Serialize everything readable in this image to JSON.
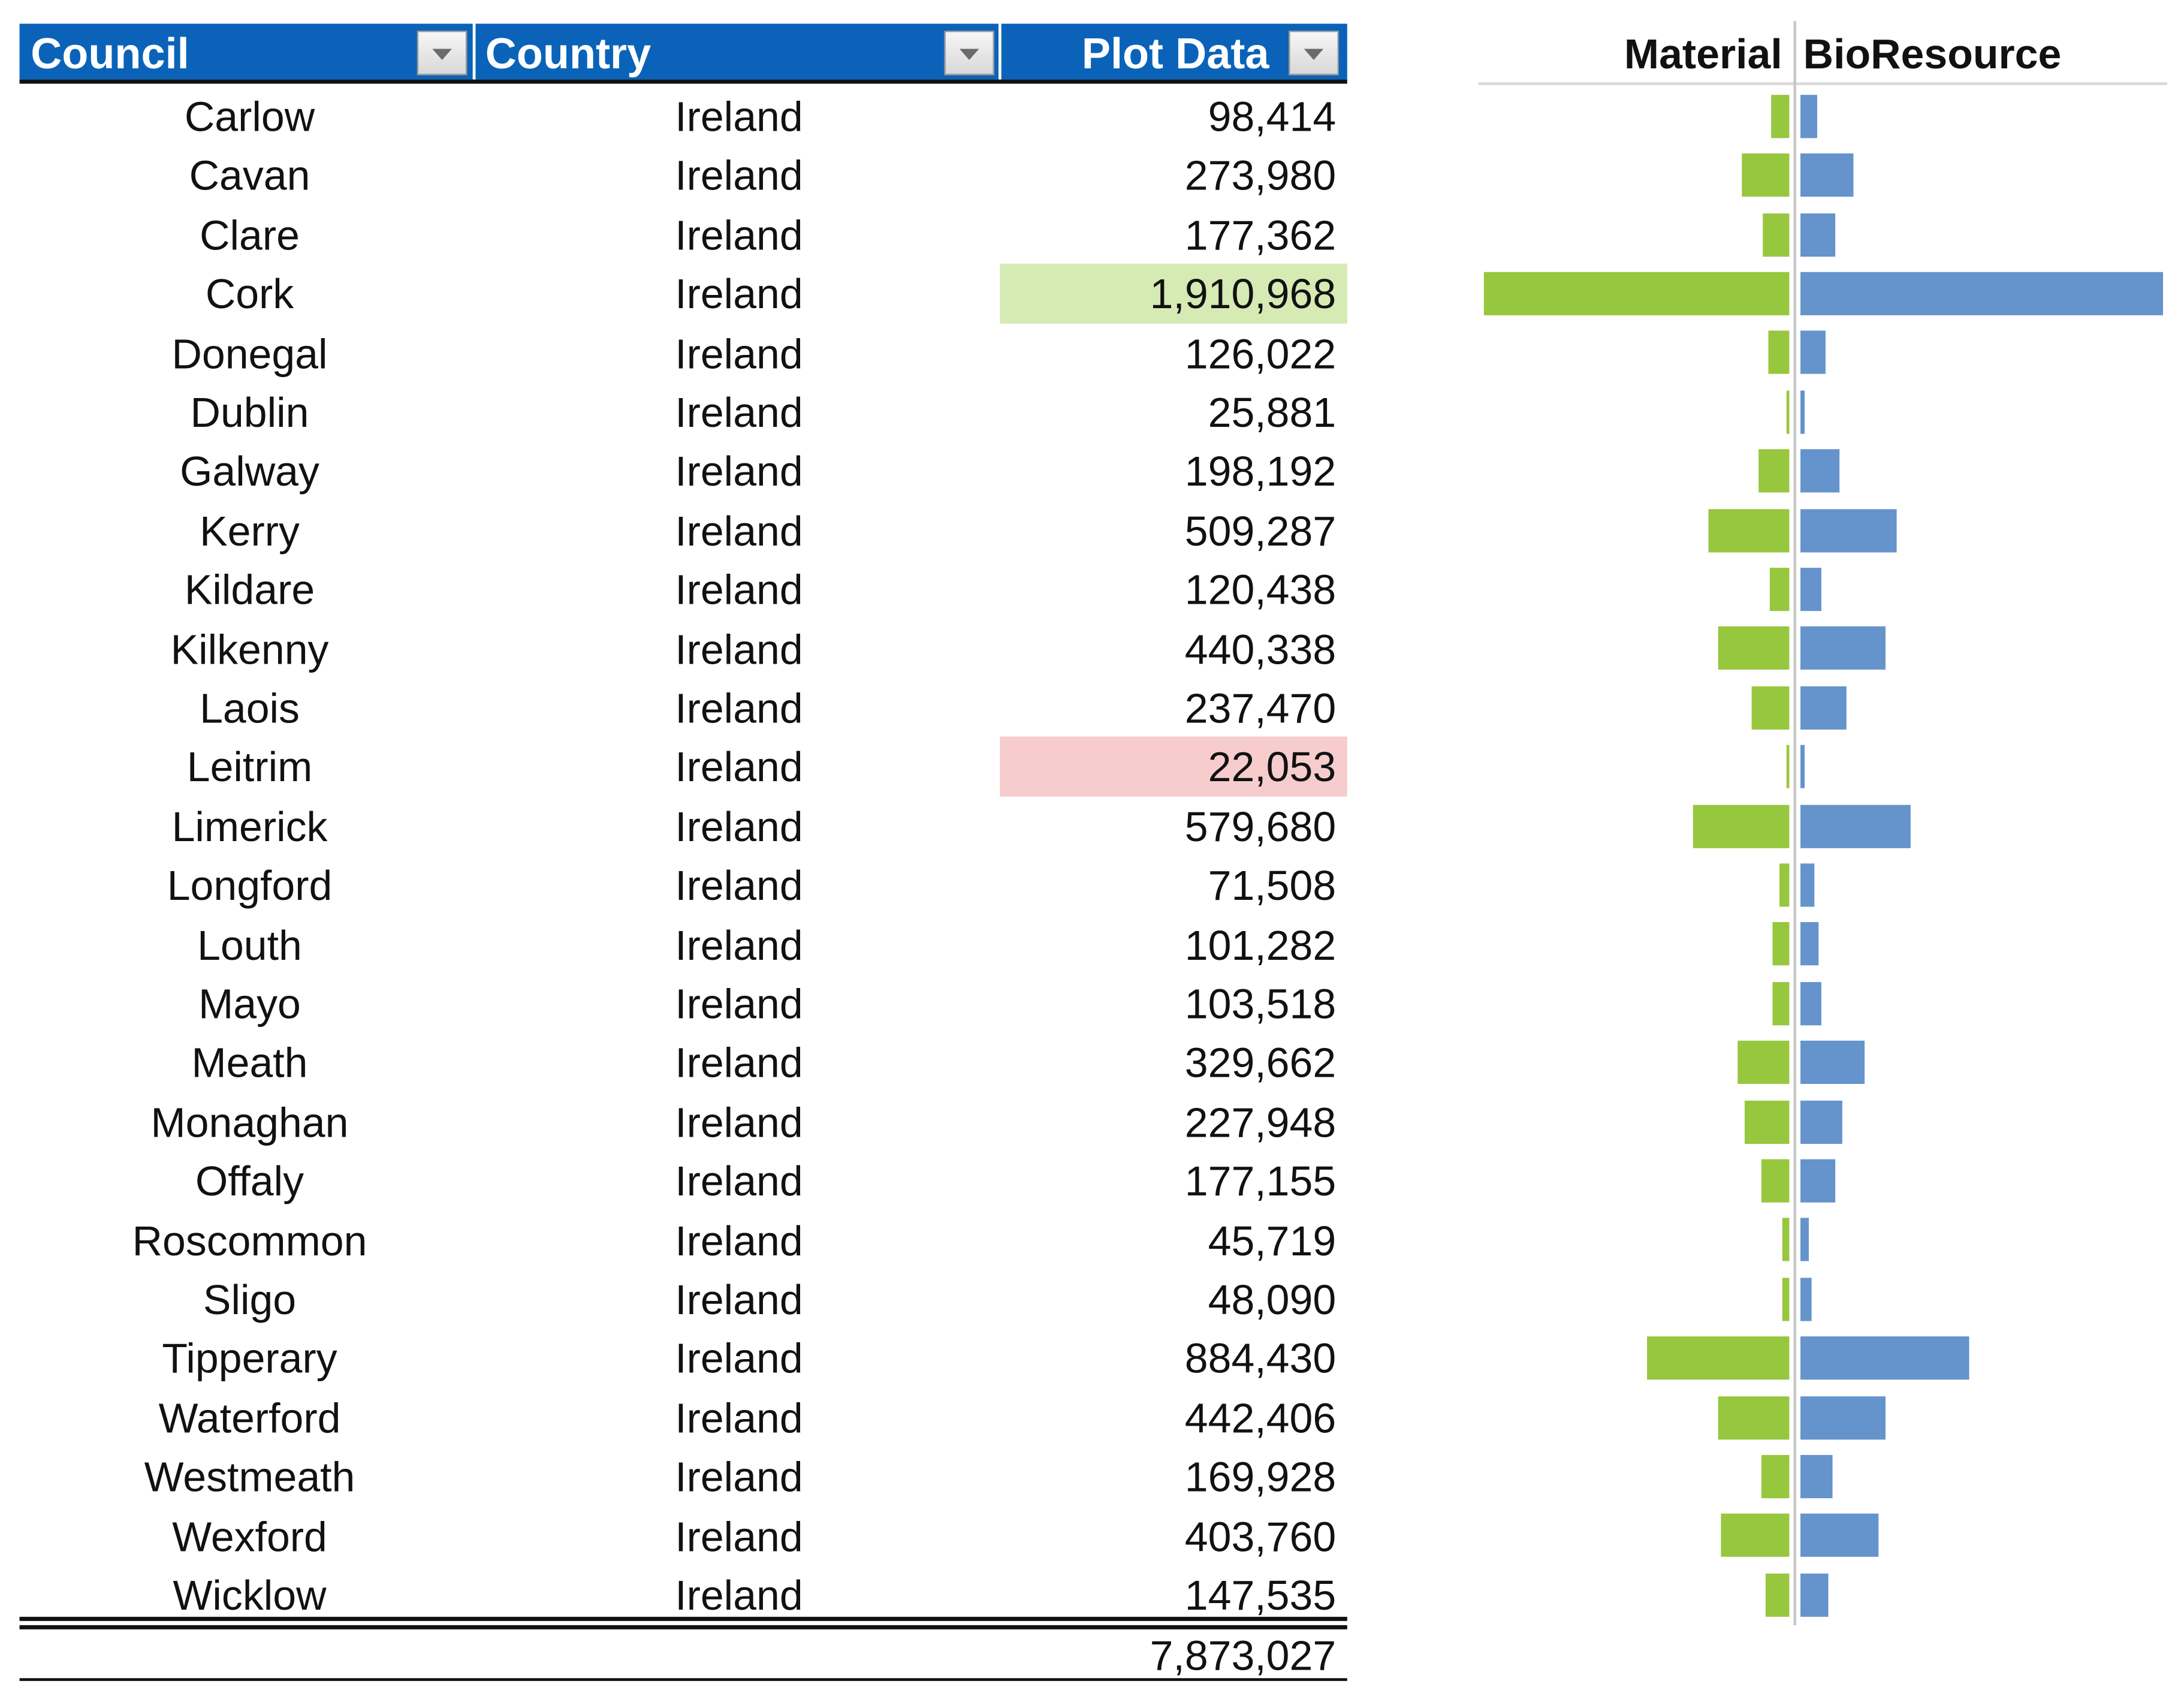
{
  "table": {
    "headers": {
      "council": "Council",
      "country": "Country",
      "plot": "Plot Data"
    },
    "rows": [
      {
        "council": "Carlow",
        "country": "Ireland",
        "plot": "98,414"
      },
      {
        "council": "Cavan",
        "country": "Ireland",
        "plot": "273,980"
      },
      {
        "council": "Clare",
        "country": "Ireland",
        "plot": "177,362"
      },
      {
        "council": "Cork",
        "country": "Ireland",
        "plot": "1,910,968",
        "highlight": "max"
      },
      {
        "council": "Donegal",
        "country": "Ireland",
        "plot": "126,022"
      },
      {
        "council": "Dublin",
        "country": "Ireland",
        "plot": "25,881"
      },
      {
        "council": "Galway",
        "country": "Ireland",
        "plot": "198,192"
      },
      {
        "council": "Kerry",
        "country": "Ireland",
        "plot": "509,287"
      },
      {
        "council": "Kildare",
        "country": "Ireland",
        "plot": "120,438"
      },
      {
        "council": "Kilkenny",
        "country": "Ireland",
        "plot": "440,338"
      },
      {
        "council": "Laois",
        "country": "Ireland",
        "plot": "237,470"
      },
      {
        "council": "Leitrim",
        "country": "Ireland",
        "plot": "22,053",
        "highlight": "min"
      },
      {
        "council": "Limerick",
        "country": "Ireland",
        "plot": "579,680"
      },
      {
        "council": "Longford",
        "country": "Ireland",
        "plot": "71,508"
      },
      {
        "council": "Louth",
        "country": "Ireland",
        "plot": "101,282"
      },
      {
        "council": "Mayo",
        "country": "Ireland",
        "plot": "103,518"
      },
      {
        "council": "Meath",
        "country": "Ireland",
        "plot": "329,662"
      },
      {
        "council": "Monaghan",
        "country": "Ireland",
        "plot": "227,948"
      },
      {
        "council": "Offaly",
        "country": "Ireland",
        "plot": "177,155"
      },
      {
        "council": "Roscommon",
        "country": "Ireland",
        "plot": "45,719"
      },
      {
        "council": "Sligo",
        "country": "Ireland",
        "plot": "48,090"
      },
      {
        "council": "Tipperary",
        "country": "Ireland",
        "plot": "884,430"
      },
      {
        "council": "Waterford",
        "country": "Ireland",
        "plot": "442,406"
      },
      {
        "council": "Westmeath",
        "country": "Ireland",
        "plot": "169,928"
      },
      {
        "council": "Wexford",
        "country": "Ireland",
        "plot": "403,760"
      },
      {
        "council": "Wicklow",
        "country": "Ireland",
        "plot": "147,535"
      }
    ],
    "total": "7,873,027"
  },
  "colors": {
    "header_bg": "#0a63b8",
    "highlight_max": "#d6eab4",
    "highlight_min": "#f6cccc",
    "material": "#97c73e",
    "bioresource": "#6593cc"
  },
  "chart_data": {
    "type": "bar",
    "orientation": "horizontal-butterfly",
    "title": "",
    "series": [
      {
        "name": "Material",
        "direction": "left",
        "values": [
          13,
          34,
          19,
          216,
          15,
          2,
          22,
          57,
          14,
          50,
          27,
          2,
          68,
          7,
          12,
          12,
          37,
          32,
          20,
          5,
          5,
          101,
          50,
          20,
          48,
          17
        ]
      },
      {
        "name": "BioResource",
        "direction": "right",
        "values": [
          12,
          38,
          25,
          257,
          18,
          3,
          28,
          68,
          15,
          60,
          33,
          3,
          78,
          10,
          13,
          15,
          45,
          30,
          25,
          6,
          8,
          120,
          60,
          23,
          55,
          20
        ]
      }
    ],
    "categories": [
      "Carlow",
      "Cavan",
      "Clare",
      "Cork",
      "Donegal",
      "Dublin",
      "Galway",
      "Kerry",
      "Kildare",
      "Kilkenny",
      "Laois",
      "Leitrim",
      "Limerick",
      "Longford",
      "Louth",
      "Mayo",
      "Meath",
      "Monaghan",
      "Offaly",
      "Roscommon",
      "Sligo",
      "Tipperary",
      "Waterford",
      "Westmeath",
      "Wexford",
      "Wicklow"
    ],
    "legend": "top"
  }
}
